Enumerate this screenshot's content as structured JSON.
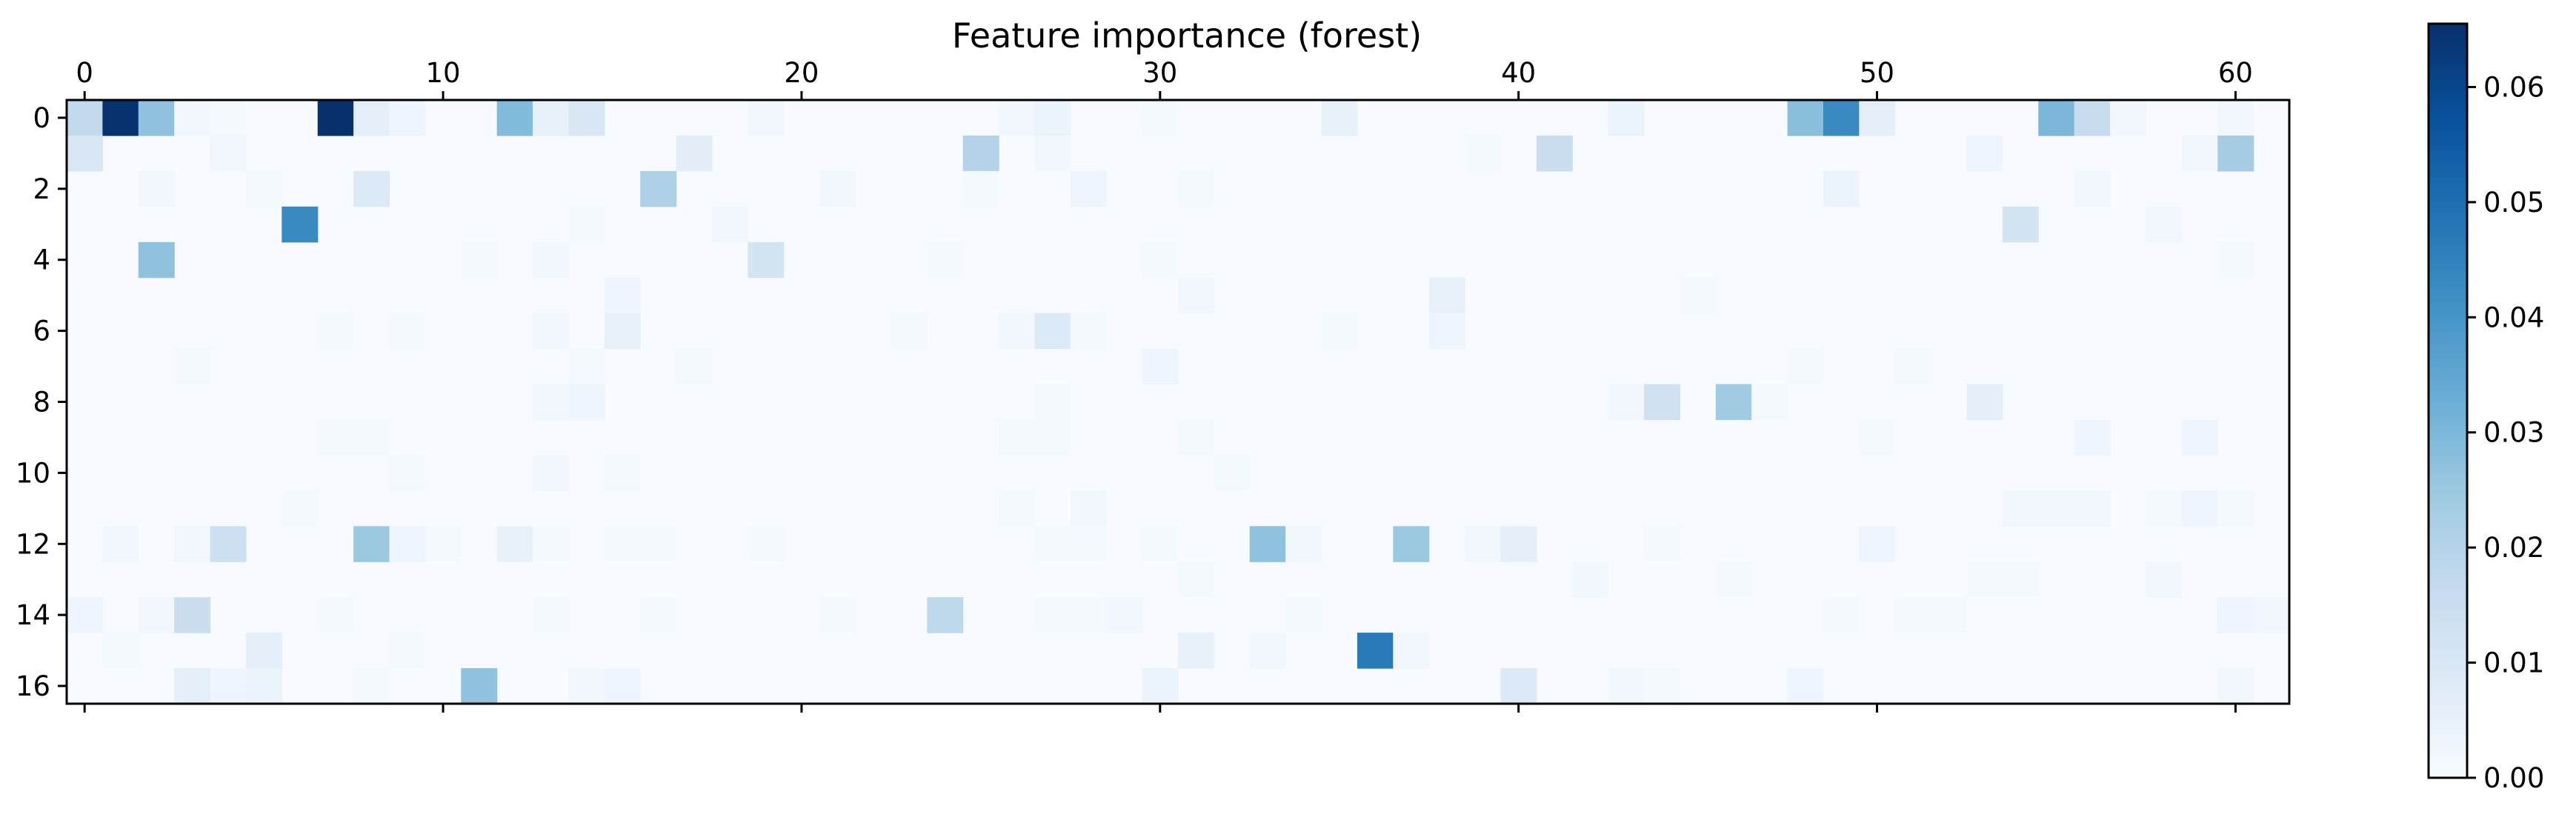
{
  "chart_data": {
    "type": "heatmap",
    "title": "Feature importance (forest)",
    "xlabel": "",
    "ylabel": "",
    "x_ticks": [
      0,
      10,
      20,
      30,
      40,
      50,
      60
    ],
    "y_ticks": [
      0,
      2,
      4,
      6,
      8,
      10,
      12,
      14,
      16
    ],
    "x_tick_position": "top-and-bottom",
    "colormap": "Blues",
    "colorbar": {
      "ticks": [
        0.0,
        0.01,
        0.02,
        0.03,
        0.04,
        0.05,
        0.06
      ],
      "tick_labels": [
        "0.00",
        "0.01",
        "0.02",
        "0.03",
        "0.04",
        "0.05",
        "0.06"
      ],
      "vmin": 0.0,
      "vmax": 0.0655
    },
    "n_rows": 17,
    "n_cols": 62,
    "cells": [
      [
        0,
        0,
        0.017
      ],
      [
        0,
        1,
        0.065
      ],
      [
        0,
        2,
        0.027
      ],
      [
        0,
        3,
        0.002
      ],
      [
        0,
        4,
        0.001
      ],
      [
        0,
        7,
        0.066
      ],
      [
        0,
        8,
        0.006
      ],
      [
        0,
        9,
        0.003
      ],
      [
        0,
        12,
        0.029
      ],
      [
        0,
        13,
        0.005
      ],
      [
        0,
        14,
        0.01
      ],
      [
        0,
        19,
        0.002
      ],
      [
        0,
        26,
        0.002
      ],
      [
        0,
        27,
        0.004
      ],
      [
        0,
        30,
        0.001
      ],
      [
        0,
        35,
        0.005
      ],
      [
        0,
        43,
        0.004
      ],
      [
        0,
        48,
        0.028
      ],
      [
        0,
        49,
        0.043
      ],
      [
        0,
        50,
        0.006
      ],
      [
        0,
        55,
        0.03
      ],
      [
        0,
        56,
        0.016
      ],
      [
        0,
        57,
        0.002
      ],
      [
        0,
        60,
        0.002
      ],
      [
        1,
        0,
        0.01
      ],
      [
        1,
        4,
        0.002
      ],
      [
        1,
        17,
        0.007
      ],
      [
        1,
        25,
        0.02
      ],
      [
        1,
        27,
        0.002
      ],
      [
        1,
        39,
        0.001
      ],
      [
        1,
        41,
        0.015
      ],
      [
        1,
        53,
        0.003
      ],
      [
        1,
        59,
        0.002
      ],
      [
        1,
        60,
        0.023
      ],
      [
        2,
        2,
        0.002
      ],
      [
        2,
        5,
        0.001
      ],
      [
        2,
        8,
        0.009
      ],
      [
        2,
        16,
        0.021
      ],
      [
        2,
        21,
        0.002
      ],
      [
        2,
        25,
        0.001
      ],
      [
        2,
        28,
        0.003
      ],
      [
        2,
        31,
        0.001
      ],
      [
        2,
        49,
        0.004
      ],
      [
        2,
        56,
        0.002
      ],
      [
        3,
        6,
        0.043
      ],
      [
        3,
        14,
        0.001
      ],
      [
        3,
        18,
        0.002
      ],
      [
        3,
        54,
        0.012
      ],
      [
        3,
        58,
        0.002
      ],
      [
        4,
        2,
        0.027
      ],
      [
        4,
        11,
        0.001
      ],
      [
        4,
        13,
        0.002
      ],
      [
        4,
        19,
        0.012
      ],
      [
        4,
        24,
        0.001
      ],
      [
        4,
        30,
        0.001
      ],
      [
        4,
        60,
        0.001
      ],
      [
        5,
        15,
        0.003
      ],
      [
        5,
        31,
        0.002
      ],
      [
        5,
        38,
        0.005
      ],
      [
        5,
        45,
        0.001
      ],
      [
        6,
        7,
        0.001
      ],
      [
        6,
        9,
        0.001
      ],
      [
        6,
        13,
        0.002
      ],
      [
        6,
        15,
        0.005
      ],
      [
        6,
        23,
        0.001
      ],
      [
        6,
        26,
        0.002
      ],
      [
        6,
        27,
        0.009
      ],
      [
        6,
        28,
        0.001
      ],
      [
        6,
        35,
        0.001
      ],
      [
        6,
        38,
        0.003
      ],
      [
        7,
        3,
        0.001
      ],
      [
        7,
        14,
        0.001
      ],
      [
        7,
        17,
        0.001
      ],
      [
        7,
        30,
        0.003
      ],
      [
        7,
        48,
        0.001
      ],
      [
        7,
        51,
        0.001
      ],
      [
        8,
        13,
        0.002
      ],
      [
        8,
        14,
        0.003
      ],
      [
        8,
        27,
        0.001
      ],
      [
        8,
        43,
        0.002
      ],
      [
        8,
        44,
        0.013
      ],
      [
        8,
        46,
        0.024
      ],
      [
        8,
        47,
        0.001
      ],
      [
        8,
        53,
        0.006
      ],
      [
        9,
        7,
        0.001
      ],
      [
        9,
        8,
        0.001
      ],
      [
        9,
        26,
        0.001
      ],
      [
        9,
        27,
        0.001
      ],
      [
        9,
        31,
        0.001
      ],
      [
        9,
        50,
        0.001
      ],
      [
        9,
        56,
        0.003
      ],
      [
        9,
        59,
        0.003
      ],
      [
        10,
        9,
        0.001
      ],
      [
        10,
        13,
        0.002
      ],
      [
        10,
        15,
        0.001
      ],
      [
        10,
        32,
        0.001
      ],
      [
        11,
        6,
        0.001
      ],
      [
        11,
        26,
        0.001
      ],
      [
        11,
        28,
        0.002
      ],
      [
        11,
        54,
        0.002
      ],
      [
        11,
        55,
        0.002
      ],
      [
        11,
        56,
        0.002
      ],
      [
        11,
        58,
        0.001
      ],
      [
        11,
        59,
        0.003
      ],
      [
        11,
        60,
        0.001
      ],
      [
        12,
        1,
        0.002
      ],
      [
        12,
        3,
        0.002
      ],
      [
        12,
        4,
        0.014
      ],
      [
        12,
        8,
        0.025
      ],
      [
        12,
        9,
        0.003
      ],
      [
        12,
        10,
        0.001
      ],
      [
        12,
        12,
        0.005
      ],
      [
        12,
        13,
        0.001
      ],
      [
        12,
        15,
        0.001
      ],
      [
        12,
        16,
        0.001
      ],
      [
        12,
        19,
        0.001
      ],
      [
        12,
        27,
        0.001
      ],
      [
        12,
        28,
        0.001
      ],
      [
        12,
        30,
        0.001
      ],
      [
        12,
        33,
        0.027
      ],
      [
        12,
        34,
        0.002
      ],
      [
        12,
        37,
        0.025
      ],
      [
        12,
        39,
        0.002
      ],
      [
        12,
        40,
        0.006
      ],
      [
        12,
        44,
        0.001
      ],
      [
        12,
        50,
        0.003
      ],
      [
        13,
        31,
        0.001
      ],
      [
        13,
        42,
        0.002
      ],
      [
        13,
        46,
        0.001
      ],
      [
        13,
        53,
        0.001
      ],
      [
        13,
        54,
        0.001
      ],
      [
        13,
        58,
        0.002
      ],
      [
        14,
        0,
        0.003
      ],
      [
        14,
        2,
        0.002
      ],
      [
        14,
        3,
        0.015
      ],
      [
        14,
        7,
        0.001
      ],
      [
        14,
        13,
        0.001
      ],
      [
        14,
        16,
        0.001
      ],
      [
        14,
        21,
        0.001
      ],
      [
        14,
        24,
        0.018
      ],
      [
        14,
        27,
        0.001
      ],
      [
        14,
        28,
        0.001
      ],
      [
        14,
        29,
        0.002
      ],
      [
        14,
        34,
        0.001
      ],
      [
        14,
        49,
        0.001
      ],
      [
        14,
        51,
        0.001
      ],
      [
        14,
        52,
        0.001
      ],
      [
        14,
        60,
        0.003
      ],
      [
        14,
        61,
        0.002
      ],
      [
        15,
        1,
        0.001
      ],
      [
        15,
        5,
        0.006
      ],
      [
        15,
        9,
        0.001
      ],
      [
        15,
        31,
        0.005
      ],
      [
        15,
        33,
        0.002
      ],
      [
        15,
        36,
        0.047
      ],
      [
        15,
        37,
        0.002
      ],
      [
        16,
        3,
        0.006
      ],
      [
        16,
        4,
        0.003
      ],
      [
        16,
        5,
        0.004
      ],
      [
        16,
        8,
        0.001
      ],
      [
        16,
        11,
        0.027
      ],
      [
        16,
        14,
        0.002
      ],
      [
        16,
        15,
        0.003
      ],
      [
        16,
        30,
        0.004
      ],
      [
        16,
        40,
        0.009
      ],
      [
        16,
        43,
        0.002
      ],
      [
        16,
        44,
        0.001
      ],
      [
        16,
        48,
        0.003
      ],
      [
        16,
        60,
        0.002
      ]
    ]
  }
}
